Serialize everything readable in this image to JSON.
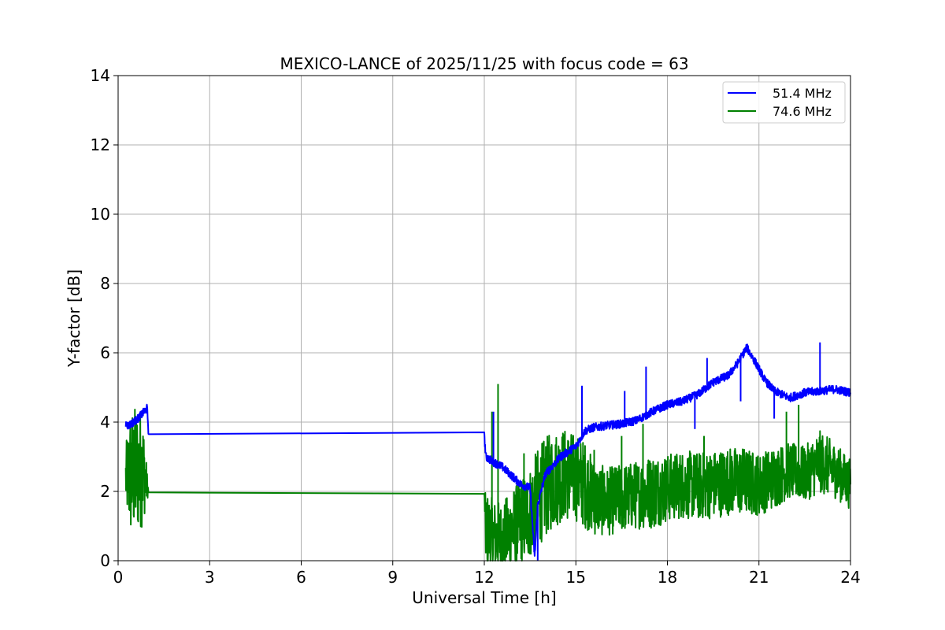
{
  "chart_data": {
    "type": "line",
    "title": "MEXICO-LANCE of 2025/11/25 with focus code = 63",
    "xlabel": "Universal Time [h]",
    "ylabel": "Y-factor [dB]",
    "xlim": [
      0,
      24
    ],
    "ylim": [
      0,
      14
    ],
    "xticks": [
      0,
      3,
      6,
      9,
      12,
      15,
      18,
      21,
      24
    ],
    "yticks": [
      0,
      2,
      4,
      6,
      8,
      10,
      12,
      14
    ],
    "grid": true,
    "legend_position": "top-right",
    "series": [
      {
        "name": "51.4 MHz",
        "color": "#0000ff",
        "x": [
          0.25,
          0.35,
          0.5,
          0.65,
          0.8,
          0.95,
          1.0,
          12.0,
          12.05,
          12.3,
          12.6,
          12.9,
          13.2,
          13.5,
          13.65,
          13.75,
          14.0,
          14.5,
          15.0,
          15.3,
          15.6,
          16.0,
          16.5,
          17.0,
          17.5,
          18.0,
          18.5,
          19.0,
          19.5,
          20.0,
          20.3,
          20.6,
          20.9,
          21.2,
          21.5,
          22.0,
          22.5,
          23.0,
          23.5,
          24.0
        ],
        "y": [
          3.95,
          3.9,
          4.0,
          4.1,
          4.25,
          4.4,
          3.65,
          3.6,
          3.0,
          2.85,
          2.7,
          2.45,
          2.2,
          2.1,
          0.1,
          1.6,
          2.5,
          3.0,
          3.3,
          3.75,
          3.85,
          3.9,
          3.95,
          4.05,
          4.3,
          4.5,
          4.6,
          4.8,
          5.15,
          5.35,
          5.7,
          6.15,
          5.7,
          5.2,
          4.9,
          4.7,
          4.85,
          4.9,
          4.95,
          4.85
        ],
        "spikes": [
          {
            "x": 12.3,
            "y": 4.3
          },
          {
            "x": 13.75,
            "y": 0.0
          },
          {
            "x": 15.2,
            "y": 5.05
          },
          {
            "x": 16.6,
            "y": 4.9
          },
          {
            "x": 17.3,
            "y": 5.6
          },
          {
            "x": 18.9,
            "y": 3.8
          },
          {
            "x": 19.3,
            "y": 5.85
          },
          {
            "x": 20.4,
            "y": 4.6
          },
          {
            "x": 21.5,
            "y": 4.1
          },
          {
            "x": 23.0,
            "y": 6.3
          }
        ]
      },
      {
        "name": "74.6 MHz",
        "color": "#008000",
        "x": [
          0.25,
          0.4,
          0.6,
          0.8,
          1.0,
          12.0,
          12.05,
          12.3,
          12.6,
          12.9,
          13.2,
          13.5,
          13.8,
          14.2,
          14.6,
          15.0,
          15.3,
          15.6,
          16.0,
          16.5,
          17.0,
          17.5,
          18.0,
          18.5,
          19.0,
          19.5,
          20.0,
          20.5,
          21.0,
          21.5,
          22.0,
          22.5,
          23.0,
          23.5,
          24.0
        ],
        "y": [
          2.4,
          2.5,
          2.6,
          2.7,
          1.97,
          1.93,
          0.9,
          0.7,
          0.6,
          0.9,
          1.1,
          1.4,
          1.9,
          2.3,
          2.5,
          2.4,
          2.2,
          1.8,
          1.7,
          1.8,
          1.9,
          2.0,
          2.1,
          2.2,
          2.15,
          2.2,
          2.3,
          2.3,
          2.2,
          2.4,
          2.6,
          2.5,
          2.85,
          2.6,
          2.2
        ],
        "band": [
          1.0,
          2.1,
          2.1,
          1.9,
          0,
          0,
          1.2,
          1.2,
          1.2,
          1.3,
          1.4,
          1.5,
          1.6,
          1.6,
          1.5,
          1.4,
          1.4,
          1.2,
          1.1,
          1.1,
          1.1,
          1.2,
          1.1,
          1.1,
          1.1,
          1.1,
          1.1,
          1.1,
          1.0,
          1.0,
          0.9,
          0.9,
          1.0,
          0.9,
          0.8
        ],
        "spikes": [
          {
            "x": 12.25,
            "y": 4.3
          },
          {
            "x": 12.45,
            "y": 5.1
          },
          {
            "x": 13.3,
            "y": 3.1
          },
          {
            "x": 15.6,
            "y": 3.2
          },
          {
            "x": 16.5,
            "y": 3.6
          },
          {
            "x": 17.2,
            "y": 3.95
          },
          {
            "x": 19.2,
            "y": 3.6
          },
          {
            "x": 21.9,
            "y": 4.3
          },
          {
            "x": 22.3,
            "y": 4.5
          },
          {
            "x": 12.1,
            "y": 0.05
          }
        ]
      }
    ]
  }
}
